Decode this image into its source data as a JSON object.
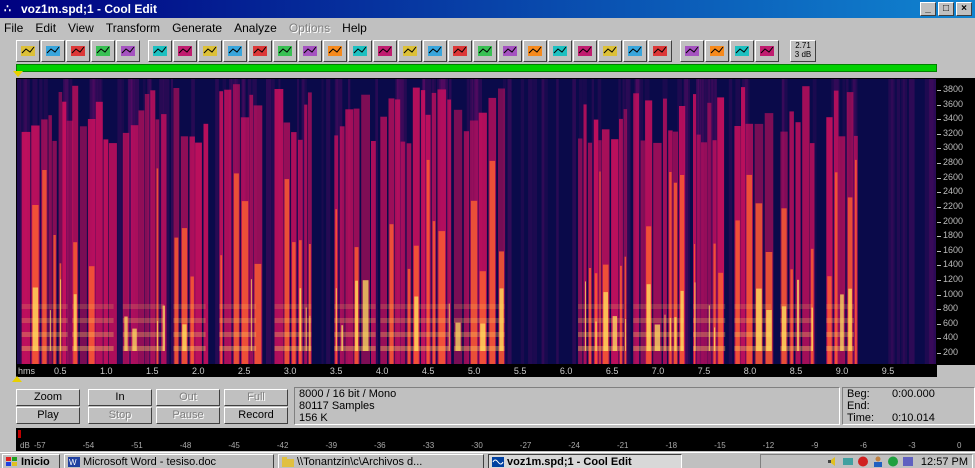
{
  "window": {
    "title": "voz1m.spd;1 - Cool Edit",
    "min": "_",
    "max": "□",
    "close": "×"
  },
  "menu": [
    {
      "label": "File",
      "enabled": true
    },
    {
      "label": "Edit",
      "enabled": true
    },
    {
      "label": "View",
      "enabled": true
    },
    {
      "label": "Transform",
      "enabled": true
    },
    {
      "label": "Generate",
      "enabled": true
    },
    {
      "label": "Analyze",
      "enabled": true
    },
    {
      "label": "Options",
      "enabled": false
    },
    {
      "label": "Help",
      "enabled": true
    }
  ],
  "toolbar": {
    "icons": [
      "wave-edit-icon",
      "open-icon",
      "save-icon",
      "multitrack-icon",
      "headphones-icon",
      "gap",
      "rewind-icon",
      "mute-icon",
      "flip-icon",
      "note-icon",
      "record-dot-icon",
      "noise-icon",
      "envelope-icon",
      "amplify-icon",
      "tempo-icon",
      "gain-icon",
      "fx-icon",
      "filter-icon",
      "spectrum-icon",
      "eq-icon",
      "chorus-icon",
      "delay-icon",
      "bars-icon",
      "reverb-icon",
      "stretch-icon",
      "distort-icon",
      "pan-icon",
      "gap",
      "cue-icon",
      "silence-icon",
      "fade-icon",
      "normalize-icon"
    ],
    "zoom_box": "2.71\n3 dB"
  },
  "spectrogram": {
    "freq_labels": [
      "3800",
      "3600",
      "3400",
      "3200",
      "3000",
      "2800",
      "2600",
      "2400",
      "2200",
      "2000",
      "1800",
      "1600",
      "1400",
      "1200",
      "1000",
      "800",
      "600",
      "400",
      "200"
    ],
    "time_unit": "hms",
    "time_labels": [
      "0.5",
      "1.0",
      "1.5",
      "2.0",
      "2.5",
      "3.0",
      "3.5",
      "4.0",
      "4.5",
      "5.0",
      "5.5",
      "6.0",
      "6.5",
      "7.0",
      "7.5",
      "8.0",
      "8.5",
      "9.0",
      "9.5"
    ],
    "duration_s": 10.014,
    "colors": {
      "bg": "#0a0a4a",
      "low": "#6b0c6b",
      "mid": "#d0105e",
      "high": "#ff6030",
      "peak": "#ffe060"
    }
  },
  "controls": {
    "zoom": "Zoom",
    "in": "In",
    "out": "Out",
    "full": "Full",
    "play": "Play",
    "stop": "Stop",
    "pause": "Pause",
    "record": "Record"
  },
  "info": {
    "format": "8000 / 16 bit / Mono",
    "samples": "80117 Samples",
    "size": "156 K"
  },
  "selection": {
    "beg_label": "Beg:",
    "beg": "0:00.000",
    "end_label": "End:",
    "end": "",
    "time_label": "Time:",
    "time": "0:10.014"
  },
  "db_scale": {
    "labels": [
      "dB",
      "-57",
      "-54",
      "-51",
      "-48",
      "-45",
      "-42",
      "-39",
      "-36",
      "-33",
      "-30",
      "-27",
      "-24",
      "-21",
      "-18",
      "-15",
      "-12",
      "-9",
      "-6",
      "-3",
      "0"
    ]
  },
  "taskbar": {
    "start": "Inicio",
    "tasks": [
      {
        "label": "Microsoft Word - tesiso.doc",
        "active": false
      },
      {
        "label": "\\\\Tonantzin\\c\\Archivos d...",
        "active": false
      },
      {
        "label": "voz1m.spd;1 - Cool Edit",
        "active": true
      }
    ],
    "clock": "12:57 PM"
  }
}
